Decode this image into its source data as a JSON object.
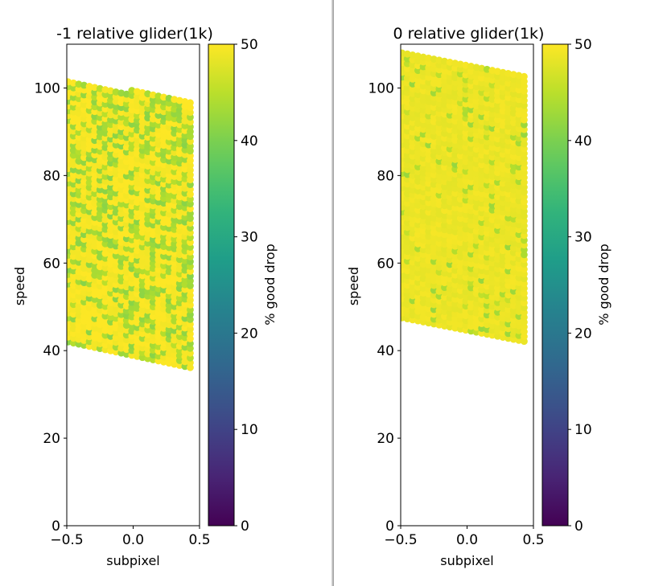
{
  "chart_data": [
    {
      "type": "scatter",
      "title": "-1 relative glider(1k)",
      "xlabel": "subpixel",
      "ylabel": "speed",
      "xlim": [
        -0.5,
        0.5
      ],
      "ylim": [
        0,
        110
      ],
      "xticks": [
        "−0.5",
        "0.0",
        "0.5"
      ],
      "yticks": [
        "0",
        "20",
        "40",
        "60",
        "80",
        "100"
      ],
      "colorbar": {
        "label": "% good drop",
        "range": [
          0,
          50
        ],
        "ticks": [
          "0",
          "10",
          "20",
          "30",
          "40",
          "50"
        ],
        "colormap": "viridis"
      },
      "grid": false,
      "domain": {
        "x_range": [
          -0.49,
          0.45
        ],
        "speed_top_left": 102,
        "speed_top_right": 97,
        "speed_bottom_left": 42,
        "speed_bottom_right": 36,
        "speed_step": 1.1,
        "subpixel_step": 0.04
      },
      "value_summary": {
        "base": 49,
        "low": 41,
        "fraction_low": 0.38
      }
    },
    {
      "type": "scatter",
      "title": "0 relative glider(1k)",
      "xlabel": "subpixel",
      "ylabel": "speed",
      "xlim": [
        -0.5,
        0.5
      ],
      "ylim": [
        0,
        110
      ],
      "xticks": [
        "−0.5",
        "0.0",
        "0.5"
      ],
      "yticks": [
        "0",
        "20",
        "40",
        "60",
        "80",
        "100"
      ],
      "colorbar": {
        "label": "% good drop",
        "range": [
          0,
          50
        ],
        "ticks": [
          "0",
          "10",
          "20",
          "30",
          "40",
          "50"
        ],
        "colormap": "viridis"
      },
      "grid": false,
      "domain": {
        "x_range": [
          -0.49,
          0.45
        ],
        "speed_top_left": 108,
        "speed_top_right": 103,
        "speed_bottom_left": 47.5,
        "speed_bottom_right": 42,
        "speed_step": 1.1,
        "subpixel_step": 0.04
      },
      "value_summary": {
        "base": 48,
        "low": 42,
        "fraction_low": 0.08
      }
    }
  ]
}
